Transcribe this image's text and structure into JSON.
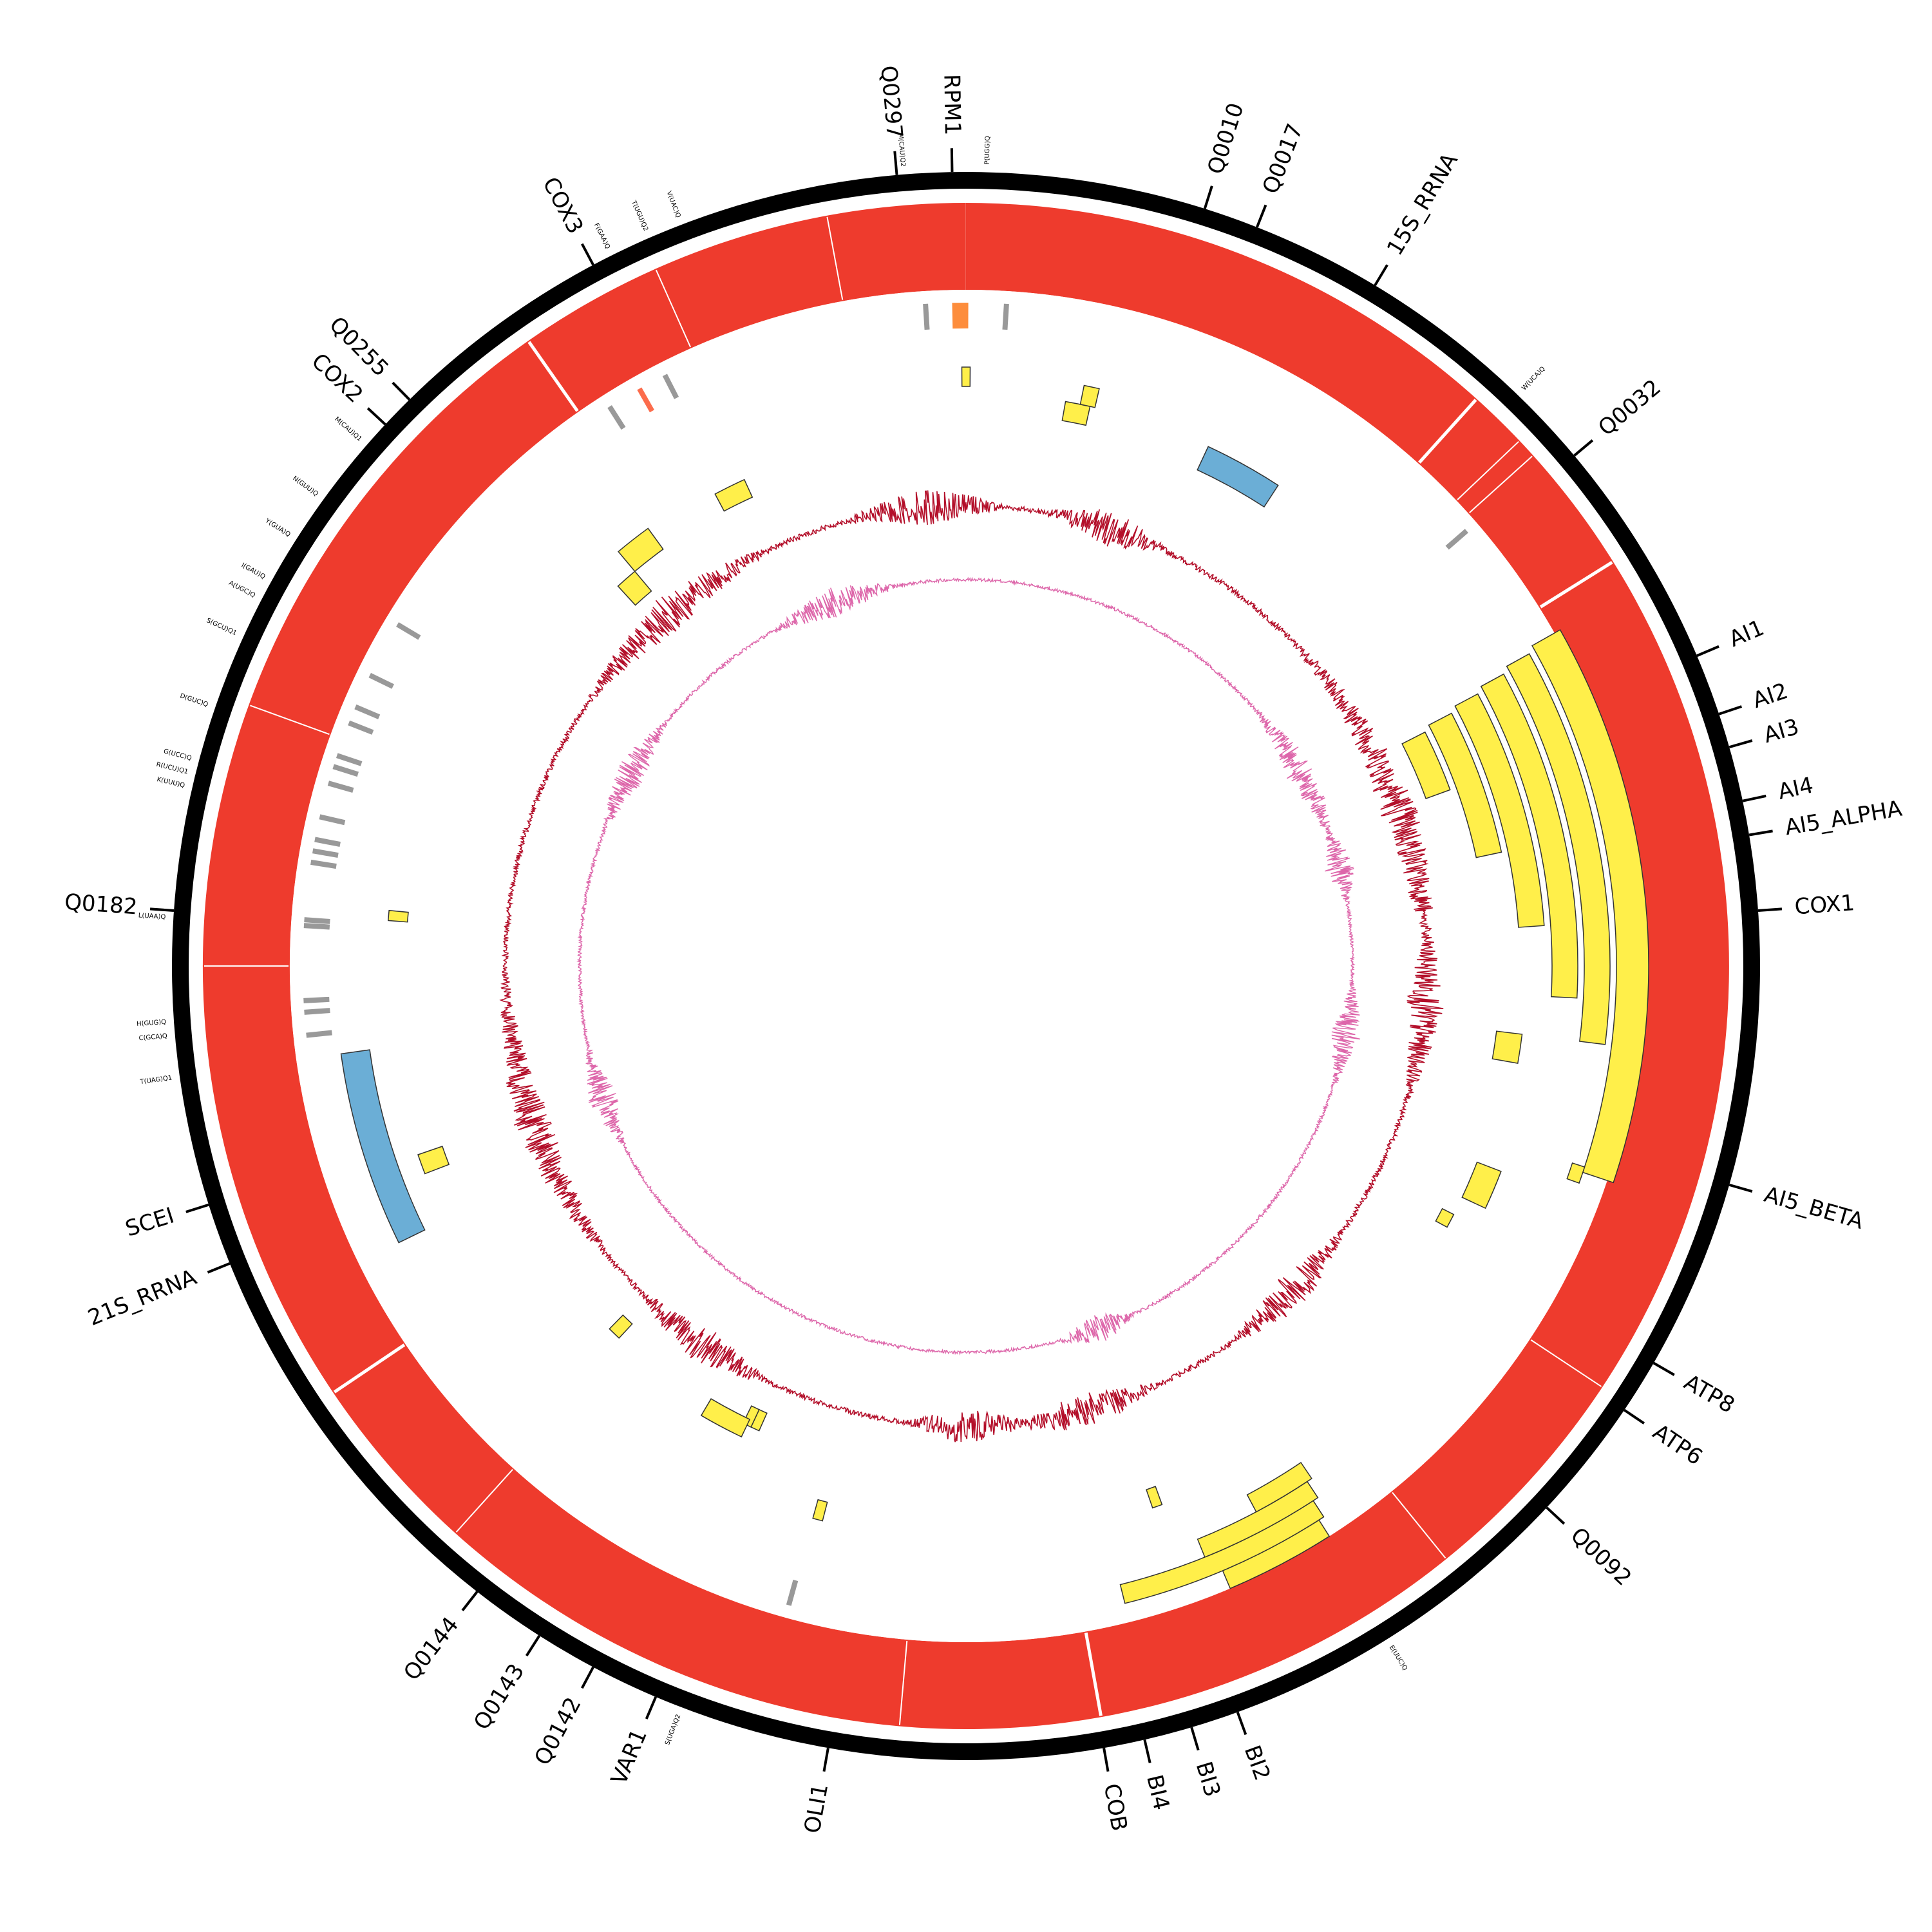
{
  "colors": {
    "backbone": "#000000",
    "coverage": "#ee3b2d",
    "exon": "#ffef4a",
    "rrna": "#6baed6",
    "trna": "#999999",
    "ori": "#fd8d3c",
    "highlight": "#fc6c4c",
    "gc_skew": "#b30e29",
    "gc_content": "#dd66aa"
  },
  "genes": [
    {
      "name": "Q0297",
      "angle": 355.0
    },
    {
      "name": "RPM1",
      "angle": 359.0
    },
    {
      "name": "Q0010",
      "angle": 17.5
    },
    {
      "name": "Q0017",
      "angle": 21.5
    },
    {
      "name": "15S_RRNA",
      "angle": 31.0
    },
    {
      "name": "Q0032",
      "angle": 50.0
    },
    {
      "name": "AI1",
      "angle": 67.0
    },
    {
      "name": "AI2",
      "angle": 71.5
    },
    {
      "name": "AI3",
      "angle": 74.0
    },
    {
      "name": "AI4",
      "angle": 78.0
    },
    {
      "name": "AI5_ALPHA",
      "angle": 80.5
    },
    {
      "name": "COX1",
      "angle": 86.0
    },
    {
      "name": "AI5_BETA",
      "angle": 106.0
    },
    {
      "name": "ATP8",
      "angle": 120.0
    },
    {
      "name": "ATP6",
      "angle": 124.0
    },
    {
      "name": "Q0092",
      "angle": 133.0
    },
    {
      "name": "BI2",
      "angle": 160.0
    },
    {
      "name": "BI3",
      "angle": 163.5
    },
    {
      "name": "BI4",
      "angle": 167.0
    },
    {
      "name": "COB",
      "angle": 170.0
    },
    {
      "name": "OLI1",
      "angle": 190.0
    },
    {
      "name": "VAR1",
      "angle": 203.0
    },
    {
      "name": "Q0142",
      "angle": 208.0
    },
    {
      "name": "Q0143",
      "angle": 212.5
    },
    {
      "name": "Q0144",
      "angle": 218.0
    },
    {
      "name": "21S_RRNA",
      "angle": 248.0
    },
    {
      "name": "SCEI",
      "angle": 252.5
    },
    {
      "name": "Q0182",
      "angle": 274.0
    },
    {
      "name": "COX2",
      "angle": 313.0
    },
    {
      "name": "Q0255",
      "angle": 315.5
    },
    {
      "name": "COX3",
      "angle": 332.0
    }
  ],
  "trnas": [
    {
      "name": "M(CAU)Q2",
      "angle": 355.5
    },
    {
      "name": "P(UGG)Q",
      "angle": 1.5
    },
    {
      "name": "W(UCA)Q",
      "angle": 44.0
    },
    {
      "name": "E(UUC)Q",
      "angle": 148.0
    },
    {
      "name": "S(UGA)Q2",
      "angle": 201.0
    },
    {
      "name": "T(UAG)Q1",
      "angle": 262.0
    },
    {
      "name": "C(GCA)Q",
      "angle": 265.0
    },
    {
      "name": "H(GUG)Q",
      "angle": 266.0
    },
    {
      "name": "L(UAA)Q",
      "angle": 273.5
    },
    {
      "name": "K(UUU)Q",
      "angle": 283.0
    },
    {
      "name": "R(UCU)Q1",
      "angle": 284.0
    },
    {
      "name": "G(UCC)Q",
      "angle": 285.0
    },
    {
      "name": "D(GUC)Q",
      "angle": 289.0
    },
    {
      "name": "S(GCU)Q1",
      "angle": 294.5
    },
    {
      "name": "A(UGC)Q",
      "angle": 297.5
    },
    {
      "name": "I(GAU)Q",
      "angle": 299.0
    },
    {
      "name": "Y(GUA)Q",
      "angle": 302.5
    },
    {
      "name": "N(GUU)Q",
      "angle": 306.0
    },
    {
      "name": "M(CAU)Q1",
      "angle": 311.0
    },
    {
      "name": "F(GAA)Q",
      "angle": 333.5
    },
    {
      "name": "T(UGU)Q2",
      "angle": 336.5
    },
    {
      "name": "V(UAC)Q",
      "angle": 339.0
    }
  ],
  "exons": [
    {
      "start": 60.5,
      "end": 108.5,
      "r_in": 1010,
      "r_out": 1060
    },
    {
      "start": 61.0,
      "end": 97.0,
      "r_in": 960,
      "r_out": 1000
    },
    {
      "start": 61.5,
      "end": 93.0,
      "r_in": 910,
      "r_out": 950
    },
    {
      "start": 62.0,
      "end": 86.0,
      "r_in": 860,
      "r_out": 900
    },
    {
      "start": 62.5,
      "end": 78.0,
      "r_in": 810,
      "r_out": 850
    },
    {
      "start": 63.0,
      "end": 70.0,
      "r_in": 760,
      "r_out": 800
    },
    {
      "start": 97.0,
      "end": 100.0,
      "r_in": 830,
      "r_out": 870
    },
    {
      "start": 108.0,
      "end": 109.5,
      "r_in": 990,
      "r_out": 1010
    },
    {
      "start": 111.0,
      "end": 115.0,
      "r_in": 850,
      "r_out": 890
    },
    {
      "start": 117.0,
      "end": 118.5,
      "r_in": 830,
      "r_out": 850
    },
    {
      "start": 147.5,
      "end": 157.0,
      "r_in": 1020,
      "r_out": 1050
    },
    {
      "start": 147.0,
      "end": 166.0,
      "r_in": 990,
      "r_out": 1020
    },
    {
      "start": 146.5,
      "end": 158.0,
      "r_in": 960,
      "r_out": 990
    },
    {
      "start": 146.0,
      "end": 152.0,
      "r_in": 930,
      "r_out": 960
    },
    {
      "start": 160.0,
      "end": 161.0,
      "r_in": 860,
      "r_out": 890
    },
    {
      "start": 10.0,
      "end": 12.5,
      "r_in": 860,
      "r_out": 890
    },
    {
      "start": 11.5,
      "end": 13.0,
      "r_in": 890,
      "r_out": 920
    },
    {
      "start": -0.4,
      "end": 0.4,
      "r_in": 900,
      "r_out": 930
    },
    {
      "start": 332.0,
      "end": 335.5,
      "r_in": 800,
      "r_out": 830
    },
    {
      "start": 320.0,
      "end": 324.0,
      "r_in": 800,
      "r_out": 840
    },
    {
      "start": 317.5,
      "end": 320.0,
      "r_in": 760,
      "r_out": 800
    },
    {
      "start": 274.5,
      "end": 275.5,
      "r_in": 870,
      "r_out": 900
    },
    {
      "start": 249.0,
      "end": 251.0,
      "r_in": 860,
      "r_out": 900
    },
    {
      "start": 223.0,
      "end": 224.5,
      "r_in": 760,
      "r_out": 790
    },
    {
      "start": 204.0,
      "end": 205.0,
      "r_in": 760,
      "r_out": 790
    },
    {
      "start": 205.0,
      "end": 206.0,
      "r_in": 760,
      "r_out": 790
    },
    {
      "start": 205.5,
      "end": 210.5,
      "r_in": 780,
      "r_out": 810
    },
    {
      "start": 194.5,
      "end": 195.5,
      "r_in": 860,
      "r_out": 890
    }
  ],
  "rrnas": [
    {
      "name": "15S_RRNA",
      "start": 25.0,
      "end": 33.0,
      "r_in": 850,
      "r_out": 890
    },
    {
      "name": "21S_RRNA",
      "start": 244.0,
      "end": 262.0,
      "r_in": 935,
      "r_out": 980
    }
  ],
  "features_small": [
    {
      "type": "ori",
      "angle": 359.5,
      "width": 1.4
    },
    {
      "type": "trna",
      "angle": 356.5
    },
    {
      "type": "trna",
      "angle": 3.5
    },
    {
      "type": "trna",
      "angle": 49.0
    },
    {
      "type": "trna",
      "angle": 152.0
    },
    {
      "type": "trna",
      "angle": 195.5
    },
    {
      "type": "trna",
      "angle": 327.5
    },
    {
      "type": "highlight",
      "angle": 330.5
    },
    {
      "type": "trna",
      "angle": 333.0
    },
    {
      "type": "trna",
      "angle": 301.0
    },
    {
      "type": "trna",
      "angle": 296.0
    },
    {
      "type": "trna",
      "angle": 293.0
    },
    {
      "type": "trna",
      "angle": 291.5
    },
    {
      "type": "trna",
      "angle": 288.5
    },
    {
      "type": "trna",
      "angle": 287.5
    },
    {
      "type": "trna",
      "angle": 286.0
    },
    {
      "type": "trna",
      "angle": 283.0
    },
    {
      "type": "trna",
      "angle": 281.0
    },
    {
      "type": "trna",
      "angle": 280.0
    },
    {
      "type": "trna",
      "angle": 279.0
    },
    {
      "type": "trna",
      "angle": 274.0
    },
    {
      "type": "trna",
      "angle": 273.5
    },
    {
      "type": "trna",
      "angle": 267.0
    },
    {
      "type": "trna",
      "angle": 266.0
    },
    {
      "type": "trna",
      "angle": 264.0
    }
  ]
}
